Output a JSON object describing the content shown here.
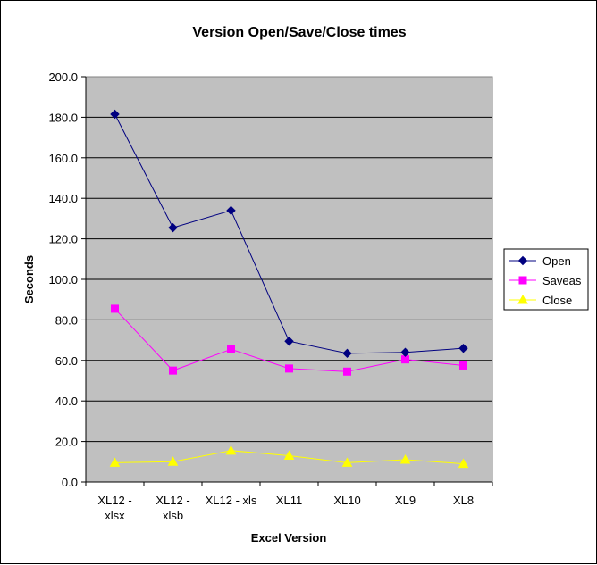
{
  "chart_data": {
    "type": "line",
    "title": "Version Open/Save/Close times",
    "xlabel": "Excel Version",
    "ylabel": "Seconds",
    "ylim": [
      0,
      200
    ],
    "ytick_step": 20,
    "ytick_labels": [
      "0.0",
      "20.0",
      "40.0",
      "60.0",
      "80.0",
      "100.0",
      "120.0",
      "140.0",
      "160.0",
      "180.0",
      "200.0"
    ],
    "categories": [
      [
        "XL12 -",
        "xlsx"
      ],
      [
        "XL12 -",
        "xlsb"
      ],
      [
        "XL12 - xls"
      ],
      [
        "XL11"
      ],
      [
        "XL10"
      ],
      [
        "XL9"
      ],
      [
        "XL8"
      ]
    ],
    "grid": true,
    "legend_position": "right",
    "plot_background": "#c0c0c0",
    "series": [
      {
        "name": "Open",
        "color": "#000080",
        "marker": "diamond",
        "values": [
          181.5,
          125.5,
          134.0,
          69.5,
          63.5,
          64.0,
          66.0
        ]
      },
      {
        "name": "Saveas",
        "color": "#ff00ff",
        "marker": "square",
        "values": [
          85.5,
          55.0,
          65.5,
          56.0,
          54.5,
          60.5,
          57.5
        ]
      },
      {
        "name": "Close",
        "color": "#ffff00",
        "marker": "triangle",
        "values": [
          9.5,
          10.0,
          15.5,
          13.0,
          9.5,
          11.0,
          9.0
        ]
      }
    ]
  }
}
